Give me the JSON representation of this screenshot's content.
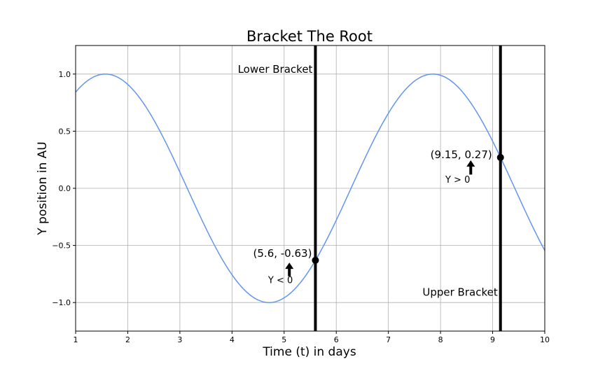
{
  "chart_data": {
    "type": "line",
    "title": "Bracket The Root",
    "xlabel": "Time (t) in days",
    "ylabel": "Y position in AU",
    "xlim": [
      1,
      10
    ],
    "ylim": [
      -1.25,
      1.25
    ],
    "x_ticks": [
      1,
      2,
      3,
      4,
      5,
      6,
      7,
      8,
      9,
      10
    ],
    "y_ticks": [
      -1.0,
      -0.5,
      0.0,
      0.5,
      1.0
    ],
    "x_tick_labels": [
      "1",
      "2",
      "3",
      "4",
      "5",
      "6",
      "7",
      "8",
      "9",
      "10"
    ],
    "y_tick_labels": [
      "−1.0",
      "−0.5",
      "0.0",
      "0.5",
      "1.0"
    ],
    "grid": true,
    "series": [
      {
        "function": "sin(t)",
        "color": "#6495ED",
        "x": [
          1.0,
          1.25,
          1.5,
          1.75,
          2.0,
          2.25,
          2.5,
          2.75,
          3.0,
          3.25,
          3.5,
          3.75,
          4.0,
          4.25,
          4.5,
          4.75,
          5.0,
          5.25,
          5.5,
          5.75,
          6.0,
          6.25,
          6.5,
          6.75,
          7.0,
          7.25,
          7.5,
          7.75,
          8.0,
          8.25,
          8.5,
          8.75,
          9.0,
          9.25,
          9.5,
          9.75,
          10.0
        ],
        "y": [
          0.841,
          0.949,
          0.997,
          0.984,
          0.909,
          0.778,
          0.598,
          0.382,
          0.141,
          -0.108,
          -0.351,
          -0.572,
          -0.757,
          -0.895,
          -0.978,
          -0.999,
          -0.959,
          -0.859,
          -0.706,
          -0.508,
          -0.279,
          -0.033,
          0.215,
          0.45,
          0.657,
          0.823,
          0.938,
          0.995,
          0.989,
          0.922,
          0.798,
          0.625,
          0.412,
          0.174,
          -0.075,
          -0.319,
          -0.544
        ]
      }
    ],
    "vertical_lines": [
      {
        "x": 5.6,
        "color": "#000000",
        "label": "Lower Bracket"
      },
      {
        "x": 9.15,
        "color": "#000000",
        "label": "Upper Bracket"
      }
    ],
    "points": [
      {
        "x": 5.6,
        "y": -0.63,
        "label": "(5.6, -0.63)",
        "note": "Y < 0"
      },
      {
        "x": 9.15,
        "y": 0.27,
        "label": "(9.15, 0.27)",
        "note": "Y > 0"
      }
    ]
  }
}
